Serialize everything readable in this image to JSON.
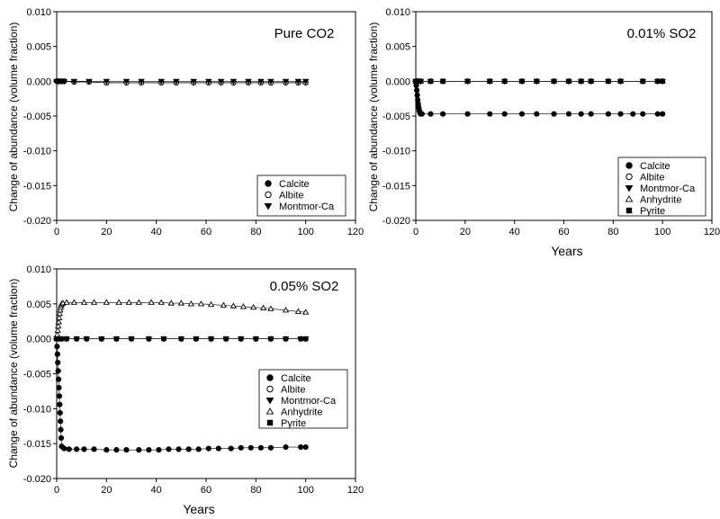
{
  "chart_data": [
    {
      "type": "scatter",
      "title": "Pure CO2",
      "xlabel": "",
      "ylabel": "Change of abundance (volume fraction)",
      "xlim": [
        0,
        120
      ],
      "ylim": [
        -0.02,
        0.01
      ],
      "xticks": [
        "0",
        "20",
        "40",
        "60",
        "80",
        "100",
        "120"
      ],
      "yticks": [
        "0.010",
        "0.005",
        "0.000",
        "-0.005",
        "-0.010",
        "-0.015",
        "-0.020"
      ],
      "legend_position": "bottom-right",
      "series": [
        {
          "name": "Calcite",
          "marker": "circle-filled",
          "x": [
            0,
            0.5,
            1,
            2,
            3,
            7,
            13,
            20,
            28,
            34,
            42,
            48,
            55,
            61,
            66,
            71,
            77,
            82,
            86,
            92,
            97,
            100
          ],
          "y": [
            0,
            0,
            0,
            0,
            0,
            -0.0001,
            -0.0001,
            -0.0002,
            -0.0002,
            -0.0002,
            -0.0002,
            -0.0002,
            -0.0002,
            -0.0002,
            -0.0002,
            -0.0002,
            -0.0002,
            -0.0002,
            -0.0002,
            -0.0002,
            -0.0002,
            -0.0002
          ]
        },
        {
          "name": "Albite",
          "marker": "circle-open",
          "x": [
            0,
            0.5,
            1,
            2,
            3,
            7,
            13,
            20,
            28,
            34,
            42,
            48,
            55,
            61,
            66,
            71,
            77,
            82,
            86,
            92,
            97,
            100
          ],
          "y": [
            0,
            0,
            0,
            0,
            0,
            -0.0001,
            -0.0001,
            -0.0002,
            -0.0002,
            -0.0002,
            -0.0002,
            -0.0002,
            -0.0002,
            -0.0002,
            -0.0002,
            -0.0002,
            -0.0002,
            -0.0002,
            -0.0002,
            -0.0002,
            -0.0002,
            -0.0002
          ]
        },
        {
          "name": "Montmor-Ca",
          "marker": "triangle-down-filled",
          "x": [
            0,
            0.5,
            1,
            2,
            3,
            7,
            13,
            20,
            28,
            34,
            42,
            48,
            55,
            61,
            66,
            71,
            77,
            82,
            86,
            92,
            97,
            100
          ],
          "y": [
            0,
            0,
            0,
            0,
            0,
            0,
            0,
            0,
            0,
            0,
            0,
            0,
            0,
            0,
            0,
            0,
            0,
            0,
            0,
            0,
            0,
            0
          ]
        }
      ]
    },
    {
      "type": "scatter",
      "title": "0.01% SO2",
      "xlabel": "Years",
      "ylabel": "Change of abundance (volume fraction)",
      "xlim": [
        0,
        120
      ],
      "ylim": [
        -0.02,
        0.01
      ],
      "xticks": [
        "0",
        "20",
        "40",
        "60",
        "80",
        "100",
        "120"
      ],
      "yticks": [
        "0.010",
        "0.005",
        "0.000",
        "-0.005",
        "-0.010",
        "-0.015",
        "-0.020"
      ],
      "legend_position": "bottom-right",
      "series": [
        {
          "name": "Calcite",
          "marker": "circle-filled",
          "x": [
            0,
            0.2,
            0.4,
            0.6,
            0.8,
            1.0,
            1.2,
            1.4,
            1.6,
            1.8,
            2.0,
            2.5,
            6,
            11,
            21,
            30,
            36,
            43,
            49,
            56,
            62,
            67,
            71,
            78,
            83,
            88,
            92,
            98,
            100
          ],
          "y": [
            0,
            -0.0006,
            -0.0013,
            -0.002,
            -0.0027,
            -0.0033,
            -0.0038,
            -0.0042,
            -0.0044,
            -0.0046,
            -0.0047,
            -0.0047,
            -0.0047,
            -0.0047,
            -0.0047,
            -0.0047,
            -0.0047,
            -0.0047,
            -0.0047,
            -0.0047,
            -0.0047,
            -0.0047,
            -0.0047,
            -0.0047,
            -0.0047,
            -0.0047,
            -0.0047,
            -0.0047,
            -0.0047
          ]
        },
        {
          "name": "Albite",
          "marker": "circle-open",
          "x": [
            0,
            0.5,
            1,
            2,
            6,
            11,
            21,
            30,
            36,
            43,
            49,
            56,
            62,
            67,
            71,
            78,
            83,
            92,
            98,
            100
          ],
          "y": [
            0,
            0,
            0,
            0,
            0,
            0,
            0,
            0,
            0,
            0,
            0,
            0,
            0,
            0,
            0,
            0,
            0,
            0,
            0,
            0
          ]
        },
        {
          "name": "Montmor-Ca",
          "marker": "triangle-down-filled",
          "x": [
            0,
            0.5,
            1,
            2,
            6,
            11,
            21,
            30,
            36,
            43,
            49,
            56,
            62,
            67,
            71,
            78,
            83,
            92,
            98,
            100
          ],
          "y": [
            0,
            0,
            0,
            0,
            0,
            0,
            0,
            0,
            0,
            0,
            0,
            0,
            0,
            0,
            0,
            0,
            0,
            0,
            0,
            0
          ]
        },
        {
          "name": "Anhydrite",
          "marker": "triangle-up-open",
          "x": [
            0,
            0.5,
            1,
            2,
            6,
            11,
            21,
            30,
            36,
            43,
            49,
            56,
            62,
            67,
            71,
            78,
            83,
            92,
            98,
            100
          ],
          "y": [
            0,
            0,
            0,
            0,
            0,
            0,
            0,
            0,
            0,
            0,
            0,
            0,
            0,
            0,
            0,
            0,
            0,
            0,
            0,
            0
          ]
        },
        {
          "name": "Pyrite",
          "marker": "square-filled",
          "x": [
            0,
            0.5,
            1,
            2,
            6,
            11,
            21,
            30,
            36,
            43,
            49,
            56,
            62,
            67,
            71,
            78,
            83,
            92,
            98,
            100
          ],
          "y": [
            0,
            0,
            0,
            0,
            0,
            0,
            0,
            0,
            0,
            0,
            0,
            0,
            0,
            0,
            0,
            0,
            0,
            0,
            0,
            0
          ]
        }
      ]
    },
    {
      "type": "scatter",
      "title": "0.05% SO2",
      "xlabel": "Years",
      "ylabel": "Change of abundance (volume fraction)",
      "xlim": [
        0,
        120
      ],
      "ylim": [
        -0.02,
        0.01
      ],
      "xticks": [
        "0",
        "20",
        "40",
        "60",
        "80",
        "100",
        "120"
      ],
      "yticks": [
        "0.010",
        "0.005",
        "0.000",
        "-0.005",
        "-0.010",
        "-0.015",
        "-0.020"
      ],
      "legend_position": "bottom-right",
      "series": [
        {
          "name": "Calcite",
          "marker": "circle-filled",
          "x": [
            0,
            0.15,
            0.3,
            0.45,
            0.6,
            0.75,
            0.9,
            1.05,
            1.2,
            1.35,
            1.5,
            1.65,
            1.8,
            2.0,
            3,
            5,
            8,
            11,
            15,
            20,
            24,
            28,
            33,
            37,
            41,
            45,
            49,
            53,
            57,
            61,
            65,
            70,
            74,
            78,
            82,
            86,
            92,
            98,
            100
          ],
          "y": [
            0,
            -0.0011,
            -0.0022,
            -0.0034,
            -0.0046,
            -0.0058,
            -0.007,
            -0.0082,
            -0.0094,
            -0.0106,
            -0.0118,
            -0.013,
            -0.0142,
            -0.0154,
            -0.0157,
            -0.0158,
            -0.0158,
            -0.0158,
            -0.0158,
            -0.0159,
            -0.0159,
            -0.0159,
            -0.0159,
            -0.0159,
            -0.0159,
            -0.0158,
            -0.0158,
            -0.0158,
            -0.0158,
            -0.0157,
            -0.0157,
            -0.0157,
            -0.0156,
            -0.0156,
            -0.0156,
            -0.0156,
            -0.0155,
            -0.0155,
            -0.0155
          ]
        },
        {
          "name": "Albite",
          "marker": "circle-open",
          "x": [
            0,
            1,
            2,
            4,
            8,
            12,
            18,
            24,
            30,
            37,
            43,
            50,
            56,
            62,
            68,
            74,
            80,
            86,
            92,
            98,
            100
          ],
          "y": [
            0,
            0,
            0,
            0,
            0,
            0,
            0,
            0,
            0,
            0,
            0,
            0,
            0,
            0,
            0,
            0,
            0,
            0,
            0,
            0,
            0
          ]
        },
        {
          "name": "Montmor-Ca",
          "marker": "triangle-down-filled",
          "x": [
            0,
            1,
            2,
            4,
            8,
            12,
            18,
            24,
            30,
            37,
            43,
            50,
            56,
            62,
            68,
            74,
            80,
            86,
            92,
            98,
            100
          ],
          "y": [
            0,
            0,
            0,
            0,
            0,
            0,
            0,
            0,
            0,
            0,
            0,
            0,
            0,
            0,
            0,
            0,
            0,
            0,
            0,
            0,
            0
          ]
        },
        {
          "name": "Anhydrite",
          "marker": "triangle-up-open",
          "x": [
            0,
            0.2,
            0.4,
            0.6,
            0.8,
            1.0,
            1.2,
            1.4,
            1.6,
            1.8,
            2.0,
            2.5,
            4,
            7,
            11,
            15,
            20,
            25,
            29,
            33,
            38,
            42,
            46,
            50,
            54,
            58,
            62,
            67,
            71,
            75,
            79,
            83,
            86,
            92,
            97,
            100
          ],
          "y": [
            0,
            0.0006,
            0.0012,
            0.0018,
            0.0024,
            0.003,
            0.0036,
            0.0041,
            0.0045,
            0.0048,
            0.005,
            0.0051,
            0.0052,
            0.0052,
            0.0052,
            0.0052,
            0.0052,
            0.0052,
            0.0052,
            0.0052,
            0.0052,
            0.0052,
            0.0051,
            0.0051,
            0.005,
            0.005,
            0.0049,
            0.0048,
            0.0047,
            0.0046,
            0.0045,
            0.0044,
            0.0043,
            0.0041,
            0.0039,
            0.0038
          ]
        },
        {
          "name": "Pyrite",
          "marker": "square-filled",
          "x": [
            0,
            1,
            2,
            4,
            8,
            12,
            18,
            24,
            30,
            37,
            43,
            50,
            56,
            62,
            68,
            74,
            80,
            86,
            92,
            98,
            100
          ],
          "y": [
            0,
            0,
            0,
            0,
            0,
            0,
            0,
            0,
            0,
            0,
            0,
            0,
            0,
            0,
            0,
            0,
            0,
            0,
            0,
            0,
            0
          ]
        }
      ]
    }
  ]
}
